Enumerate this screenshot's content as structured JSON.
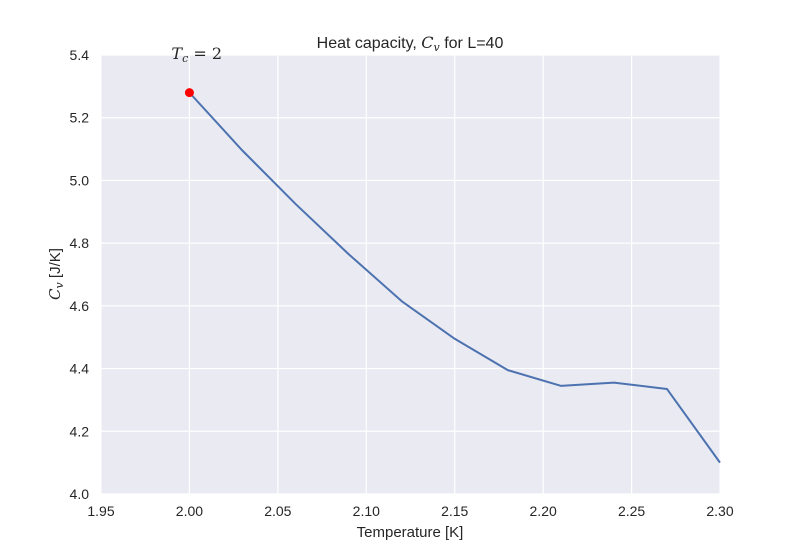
{
  "chart_data": {
    "type": "line",
    "title": {
      "prefix": "Heat capacity, ",
      "math_main": "C",
      "math_sub": "v",
      "suffix": " for L=40"
    },
    "xlabel": "Temperature [K]",
    "ylabel": {
      "math_main": "C",
      "math_sub": "v",
      "suffix": " [J/K]"
    },
    "xlim": [
      1.95,
      2.3
    ],
    "ylim": [
      4.0,
      5.4
    ],
    "x_ticks": [
      1.95,
      2.0,
      2.05,
      2.1,
      2.15,
      2.2,
      2.25,
      2.3
    ],
    "x_tick_labels": [
      "1.95",
      "2.00",
      "2.05",
      "2.10",
      "2.15",
      "2.20",
      "2.25",
      "2.30"
    ],
    "y_ticks": [
      4.0,
      4.2,
      4.4,
      4.6,
      4.8,
      5.0,
      5.2,
      5.4
    ],
    "y_tick_labels": [
      "4.0",
      "4.2",
      "4.4",
      "4.6",
      "4.8",
      "5.0",
      "5.2",
      "5.4"
    ],
    "grid": true,
    "background_color": "#EAEAF2",
    "series": [
      {
        "color": "#4C72B0",
        "x": [
          2.0,
          2.03,
          2.06,
          2.09,
          2.12,
          2.15,
          2.18,
          2.21,
          2.24,
          2.27,
          2.3
        ],
        "y": [
          5.28,
          5.095,
          4.925,
          4.765,
          4.615,
          4.495,
          4.395,
          4.345,
          4.355,
          4.335,
          4.1
        ]
      }
    ],
    "highlight": {
      "x": 2.0,
      "y": 5.28,
      "color": "#FF0000"
    },
    "annotation": {
      "math_main": "T",
      "math_sub": "c",
      "rest": " = 2",
      "x": 2.0,
      "y": 5.4
    }
  }
}
